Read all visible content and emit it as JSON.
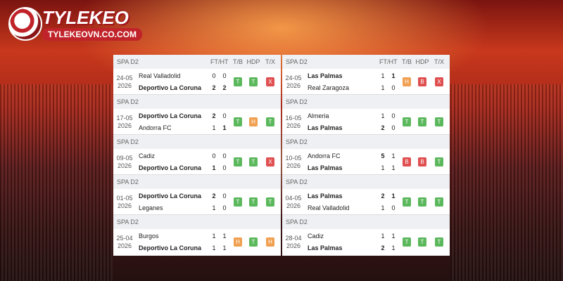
{
  "logo": {
    "name": "TYLEKEO",
    "site": "TYLEKEOVN.CO.COM"
  },
  "badge_colors": {
    "T": "#5cb85c",
    "H": "#f0a050",
    "B": "#e05050",
    "X": "#e05050"
  },
  "tables": [
    {
      "columns": [
        "FT/HT",
        "T/B",
        "HDP",
        "T/X"
      ],
      "matches": [
        {
          "league": "SPA D2",
          "date": "24-05",
          "year": "2026",
          "home": {
            "team": "Real Valladolid",
            "ft": 0,
            "ht": 0,
            "focus": false
          },
          "away": {
            "team": "Deportivo La Coruna",
            "ft": 2,
            "ht": 2,
            "focus": true
          },
          "tb": "T",
          "hdp": "T",
          "tx": "X"
        },
        {
          "league": "SPA D2",
          "date": "17-05",
          "year": "2026",
          "home": {
            "team": "Deportivo La Coruna",
            "ft": 2,
            "ht": 0,
            "focus": true
          },
          "away": {
            "team": "Andorra FC",
            "ft": 1,
            "ht": 1,
            "focus": false
          },
          "tb": "T",
          "hdp": "H",
          "tx": "T"
        },
        {
          "league": "SPA D2",
          "date": "09-05",
          "year": "2026",
          "home": {
            "team": "Cadiz",
            "ft": 0,
            "ht": 0,
            "focus": false
          },
          "away": {
            "team": "Deportivo La Coruna",
            "ft": 1,
            "ht": 0,
            "focus": true
          },
          "tb": "T",
          "hdp": "T",
          "tx": "X"
        },
        {
          "league": "SPA D2",
          "date": "01-05",
          "year": "2026",
          "home": {
            "team": "Deportivo La Coruna",
            "ft": 2,
            "ht": 0,
            "focus": true
          },
          "away": {
            "team": "Leganes",
            "ft": 1,
            "ht": 0,
            "focus": false
          },
          "tb": "T",
          "hdp": "T",
          "tx": "T"
        },
        {
          "league": "SPA D2",
          "date": "25-04",
          "year": "2026",
          "home": {
            "team": "Burgos",
            "ft": 1,
            "ht": 1,
            "focus": false
          },
          "away": {
            "team": "Deportivo La Coruna",
            "ft": 1,
            "ht": 1,
            "focus": true
          },
          "tb": "H",
          "hdp": "T",
          "tx": "H"
        }
      ]
    },
    {
      "columns": [
        "FT/HT",
        "T/B",
        "HDP",
        "T/X"
      ],
      "matches": [
        {
          "league": "SPA D2",
          "date": "24-05",
          "year": "2026",
          "home": {
            "team": "Las Palmas",
            "ft": 1,
            "ht": 1,
            "focus": true
          },
          "away": {
            "team": "Real Zaragoza",
            "ft": 1,
            "ht": 0,
            "focus": false
          },
          "tb": "H",
          "hdp": "B",
          "tx": "X"
        },
        {
          "league": "SPA D2",
          "date": "16-05",
          "year": "2026",
          "home": {
            "team": "Almeria",
            "ft": 1,
            "ht": 0,
            "focus": false
          },
          "away": {
            "team": "Las Palmas",
            "ft": 2,
            "ht": 0,
            "focus": true
          },
          "tb": "T",
          "hdp": "T",
          "tx": "T"
        },
        {
          "league": "SPA D2",
          "date": "10-05",
          "year": "2026",
          "home": {
            "team": "Andorra FC",
            "ft": 5,
            "ht": 1,
            "focus": false
          },
          "away": {
            "team": "Las Palmas",
            "ft": 1,
            "ht": 1,
            "focus": true
          },
          "tb": "B",
          "hdp": "B",
          "tx": "T"
        },
        {
          "league": "SPA D2",
          "date": "04-05",
          "year": "2026",
          "home": {
            "team": "Las Palmas",
            "ft": 2,
            "ht": 1,
            "focus": true
          },
          "away": {
            "team": "Real Valladolid",
            "ft": 1,
            "ht": 0,
            "focus": false
          },
          "tb": "T",
          "hdp": "T",
          "tx": "T"
        },
        {
          "league": "SPA D2",
          "date": "28-04",
          "year": "2026",
          "home": {
            "team": "Cadiz",
            "ft": 1,
            "ht": 1,
            "focus": false
          },
          "away": {
            "team": "Las Palmas",
            "ft": 2,
            "ht": 1,
            "focus": true
          },
          "tb": "T",
          "hdp": "T",
          "tx": "T"
        }
      ]
    }
  ]
}
